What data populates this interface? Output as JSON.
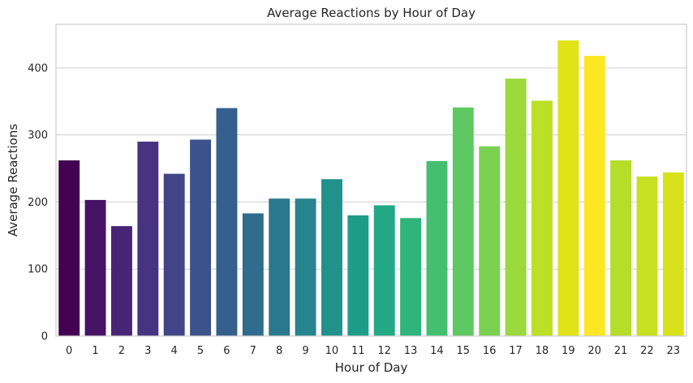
{
  "chart_data": {
    "type": "bar",
    "title": "Average Reactions by Hour of Day",
    "xlabel": "Hour of Day",
    "ylabel": "Average Reactions",
    "categories": [
      "0",
      "1",
      "2",
      "3",
      "4",
      "5",
      "6",
      "7",
      "8",
      "9",
      "10",
      "11",
      "12",
      "13",
      "14",
      "15",
      "16",
      "17",
      "18",
      "19",
      "20",
      "21",
      "22",
      "23"
    ],
    "values": [
      262,
      203,
      164,
      290,
      242,
      293,
      340,
      183,
      205,
      205,
      234,
      180,
      195,
      176,
      261,
      341,
      283,
      384,
      351,
      441,
      418,
      262,
      238,
      244
    ],
    "colors": [
      "#440154",
      "#471365",
      "#482475",
      "#463480",
      "#414487",
      "#3b528b",
      "#355f8d",
      "#2f6c8e",
      "#2a788e",
      "#25848e",
      "#21918c",
      "#1e9c89",
      "#22a884",
      "#2fb47c",
      "#44bf70",
      "#5ec962",
      "#7ad151",
      "#9bd93c",
      "#bddf26",
      "#dfe318",
      "#fde725",
      "#b5de2b",
      "#c9e020",
      "#d8e219"
    ],
    "ylim": [
      0,
      465
    ],
    "yticks": [
      0,
      100,
      200,
      300,
      400
    ],
    "grid": "horizontal",
    "palette": "viridis"
  }
}
